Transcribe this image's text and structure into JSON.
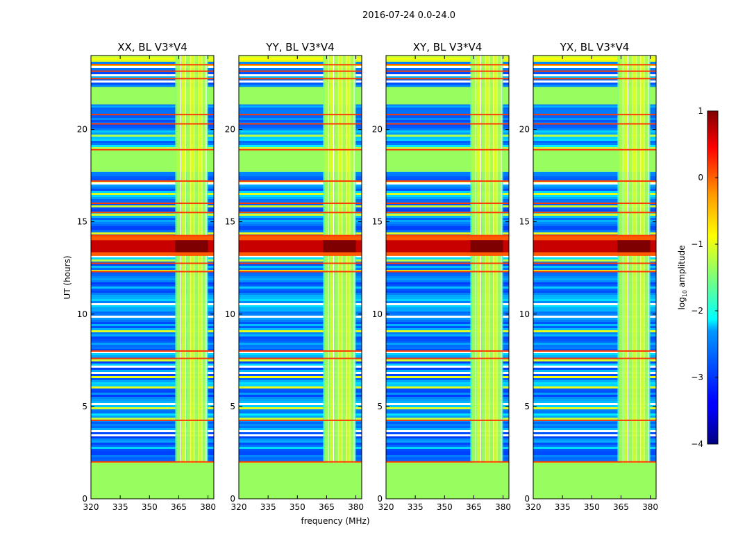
{
  "figure": {
    "suptitle": "2016-07-24 0.0-24.0",
    "xlabel": "frequency (MHz)",
    "ylabel": "UT (hours)"
  },
  "colors": {
    "colormap": "jet",
    "background": "#ffffff",
    "axes": "#000000"
  },
  "chart_data": [
    {
      "type": "heatmap",
      "title": "XX, BL V3*V4",
      "xlabel": "frequency (MHz)",
      "ylabel": "UT (hours)",
      "xlim": [
        320,
        383
      ],
      "ylim": [
        0,
        24
      ],
      "xticks": [
        320,
        335,
        350,
        365,
        380
      ],
      "yticks": [
        0,
        5,
        10,
        15,
        20
      ],
      "value_range": [
        -4,
        1
      ]
    },
    {
      "type": "heatmap",
      "title": "YY, BL V3*V4",
      "xlabel": "frequency (MHz)",
      "ylabel": "",
      "xlim": [
        320,
        383
      ],
      "ylim": [
        0,
        24
      ],
      "xticks": [
        320,
        335,
        350,
        365,
        380
      ],
      "yticks": [
        0,
        5,
        10,
        15,
        20
      ],
      "value_range": [
        -4,
        1
      ]
    },
    {
      "type": "heatmap",
      "title": "XY, BL V3*V4",
      "xlabel": "frequency (MHz)",
      "ylabel": "",
      "xlim": [
        320,
        383
      ],
      "ylim": [
        0,
        24
      ],
      "xticks": [
        320,
        335,
        350,
        365,
        380
      ],
      "yticks": [
        0,
        5,
        10,
        15,
        20
      ],
      "value_range": [
        -4,
        1
      ]
    },
    {
      "type": "heatmap",
      "title": "YX, BL V3*V4",
      "xlabel": "frequency (MHz)",
      "ylabel": "",
      "xlim": [
        320,
        383
      ],
      "ylim": [
        0,
        24
      ],
      "xticks": [
        320,
        335,
        350,
        365,
        380
      ],
      "yticks": [
        0,
        5,
        10,
        15,
        20
      ],
      "value_range": [
        -4,
        1
      ]
    }
  ],
  "colorbar": {
    "label_main": "log",
    "label_sub": "10",
    "label_tail": " amplitude",
    "ticks": [
      1,
      0,
      -1,
      -2,
      -3,
      -4
    ],
    "tick_labels": [
      "1",
      "0",
      "−1",
      "−2",
      "−3",
      "−4"
    ],
    "range": [
      -4,
      1
    ]
  },
  "features": {
    "uniform_blocks_hours": [
      [
        0,
        1.95
      ],
      [
        17.7,
        18.95
      ],
      [
        21.35,
        22.3
      ]
    ],
    "rfi_band_mhz": [
      363.2,
      380
    ],
    "rfi_lines_mhz": [
      365,
      367.5,
      370,
      372,
      374,
      376,
      378
    ],
    "strong_rfi_hours": [
      13.35,
      14.0
    ],
    "red_line_hours": [
      2.0,
      4.25,
      7.6,
      8.0,
      12.3,
      12.75,
      14.25,
      15.5,
      16.0,
      17.2,
      18.9,
      20.3,
      20.8,
      22.75,
      23.15,
      23.5
    ]
  }
}
